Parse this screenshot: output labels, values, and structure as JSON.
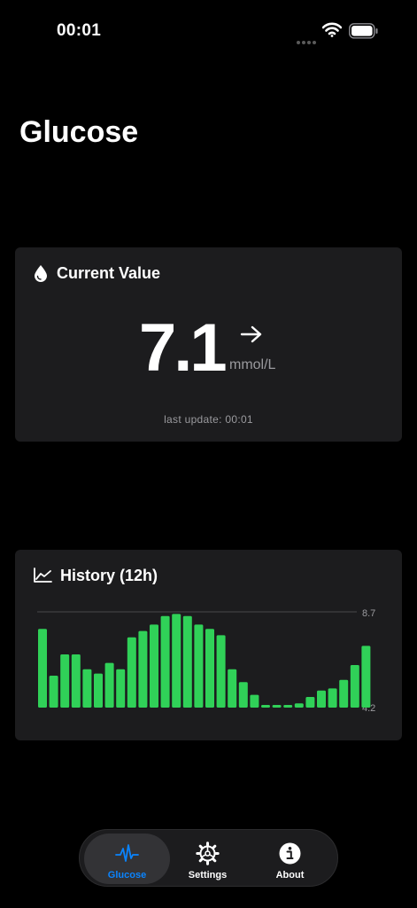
{
  "status_bar": {
    "time": "00:01"
  },
  "page": {
    "title": "Glucose"
  },
  "current": {
    "header": "Current Value",
    "value": "7.1",
    "unit": "mmol/L",
    "trend": "arrow-right-icon",
    "last_update": "last update: 00:01"
  },
  "history": {
    "header": "History (12h)",
    "chart_data": {
      "type": "bar",
      "ylim": [
        4.2,
        8.7
      ],
      "y_tick_labels": [
        "8.7",
        "4.2"
      ],
      "values": [
        7.9,
        5.7,
        6.7,
        6.7,
        6.0,
        5.8,
        6.3,
        6.0,
        7.5,
        7.8,
        8.1,
        8.5,
        8.6,
        8.5,
        8.1,
        7.9,
        7.6,
        6.0,
        5.4,
        4.8,
        4.3,
        4.3,
        4.3,
        4.4,
        4.7,
        5.0,
        5.1,
        5.5,
        6.2,
        7.1
      ],
      "bar_color": "#30d158",
      "grid_top_line": true
    }
  },
  "tab_bar": {
    "tabs": [
      {
        "label": "Glucose",
        "icon": "waveform-icon",
        "active": true
      },
      {
        "label": "Settings",
        "icon": "gear-icon",
        "active": false
      },
      {
        "label": "About",
        "icon": "info-icon",
        "active": false
      }
    ]
  },
  "colors": {
    "background": "#000000",
    "card": "#1c1c1e",
    "accent": "#0a84ff",
    "bar": "#30d158",
    "secondary_text": "#9a9a9e"
  }
}
